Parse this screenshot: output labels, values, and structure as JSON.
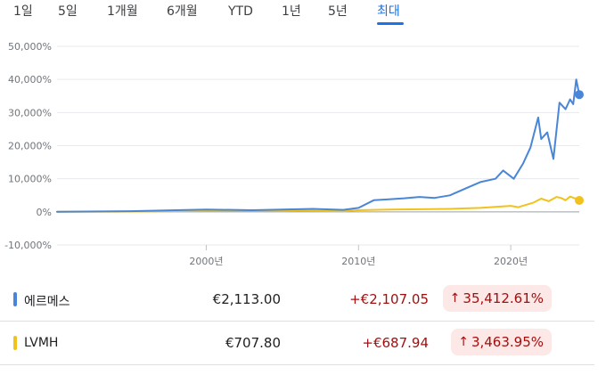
{
  "tabs": [
    {
      "label": "1일",
      "active": false
    },
    {
      "label": "5일",
      "active": false
    },
    {
      "label": "1개월",
      "active": false
    },
    {
      "label": "6개월",
      "active": false
    },
    {
      "label": "YTD",
      "active": false
    },
    {
      "label": "1년",
      "active": false
    },
    {
      "label": "5년",
      "active": false
    },
    {
      "label": "최대",
      "active": true
    }
  ],
  "chart_data": {
    "type": "line",
    "xlabel": "",
    "ylabel": "",
    "x_ticks": [
      "2000년",
      "2010년",
      "2020년"
    ],
    "y_ticks": [
      "50,000%",
      "40,000%",
      "30,000%",
      "20,000%",
      "10,000%",
      "0%",
      "-10,000%"
    ],
    "ylim": [
      -10000,
      50000
    ],
    "xlim": [
      1990.2,
      2024.5
    ],
    "grid": true,
    "series": [
      {
        "name": "에르메스",
        "color": "#4a86d8",
        "x": [
          1990.2,
          1995,
          2000,
          2003,
          2007,
          2009,
          2010,
          2011,
          2012,
          2013,
          2014,
          2015,
          2016,
          2017,
          2018,
          2019,
          2019.5,
          2020.2,
          2020.8,
          2021.3,
          2021.8,
          2022.0,
          2022.4,
          2022.8,
          2023.2,
          2023.6,
          2023.9,
          2024.1,
          2024.3,
          2024.5
        ],
        "values": [
          0,
          200,
          700,
          500,
          900,
          600,
          1200,
          3500,
          3800,
          4100,
          4500,
          4200,
          5000,
          7000,
          9000,
          10000,
          12500,
          10000,
          14500,
          19500,
          28500,
          22000,
          24000,
          16000,
          33000,
          31000,
          34000,
          32500,
          40000,
          35413
        ]
      },
      {
        "name": "LVMH",
        "color": "#f1c21b",
        "x": [
          1990.2,
          1995,
          2000,
          2005,
          2009,
          2010,
          2012,
          2014,
          2016,
          2018,
          2019,
          2020,
          2020.5,
          2021.5,
          2022.0,
          2022.5,
          2023.0,
          2023.3,
          2023.6,
          2023.9,
          2024.2,
          2024.5
        ],
        "values": [
          0,
          100,
          300,
          400,
          200,
          500,
          700,
          800,
          900,
          1200,
          1500,
          1800,
          1400,
          2800,
          4000,
          3200,
          4500,
          4200,
          3500,
          4600,
          4100,
          3464
        ]
      }
    ]
  },
  "rows": [
    {
      "name": "에르메스",
      "price": "€2,113.00",
      "change": "+€2,107.05",
      "pct": "35,412.61%",
      "color": "#4a86d8"
    },
    {
      "name": "LVMH",
      "price": "€707.80",
      "change": "+€687.94",
      "pct": "3,463.95%",
      "color": "#f1c21b"
    }
  ]
}
